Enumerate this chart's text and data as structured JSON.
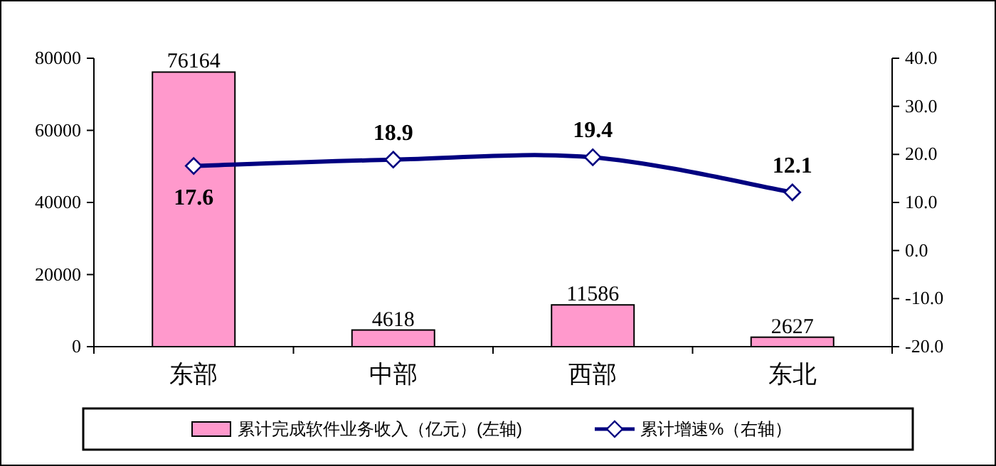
{
  "chart_data": {
    "type": "bar",
    "categories": [
      "东部",
      "中部",
      "西部",
      "东北"
    ],
    "series": [
      {
        "name": "累计完成软件业务收入（亿元）(左轴)",
        "color": "#ff99cc",
        "values": [
          76164,
          4618,
          11586,
          2627
        ]
      },
      {
        "name": "累计增速%（右轴）",
        "type": "line",
        "axis": "y2",
        "color": "#000080",
        "marker": "diamond",
        "values": [
          17.6,
          18.9,
          19.4,
          12.1
        ]
      }
    ],
    "ylim": [
      0,
      80000
    ],
    "yticks": [
      0,
      20000,
      40000,
      60000,
      80000
    ],
    "y2lim": [
      -20,
      40
    ],
    "y2ticks": [
      {
        "value": -20,
        "label": "-20.0"
      },
      {
        "value": -10,
        "label": "-10.0"
      },
      {
        "value": 0,
        "label": "0.0"
      },
      {
        "value": 10,
        "label": "10.0"
      },
      {
        "value": 20,
        "label": "20.0"
      },
      {
        "value": 30,
        "label": "30.0"
      },
      {
        "value": 40,
        "label": "40.0"
      }
    ],
    "data_labels": true,
    "grid": false,
    "legend": "bottom"
  }
}
